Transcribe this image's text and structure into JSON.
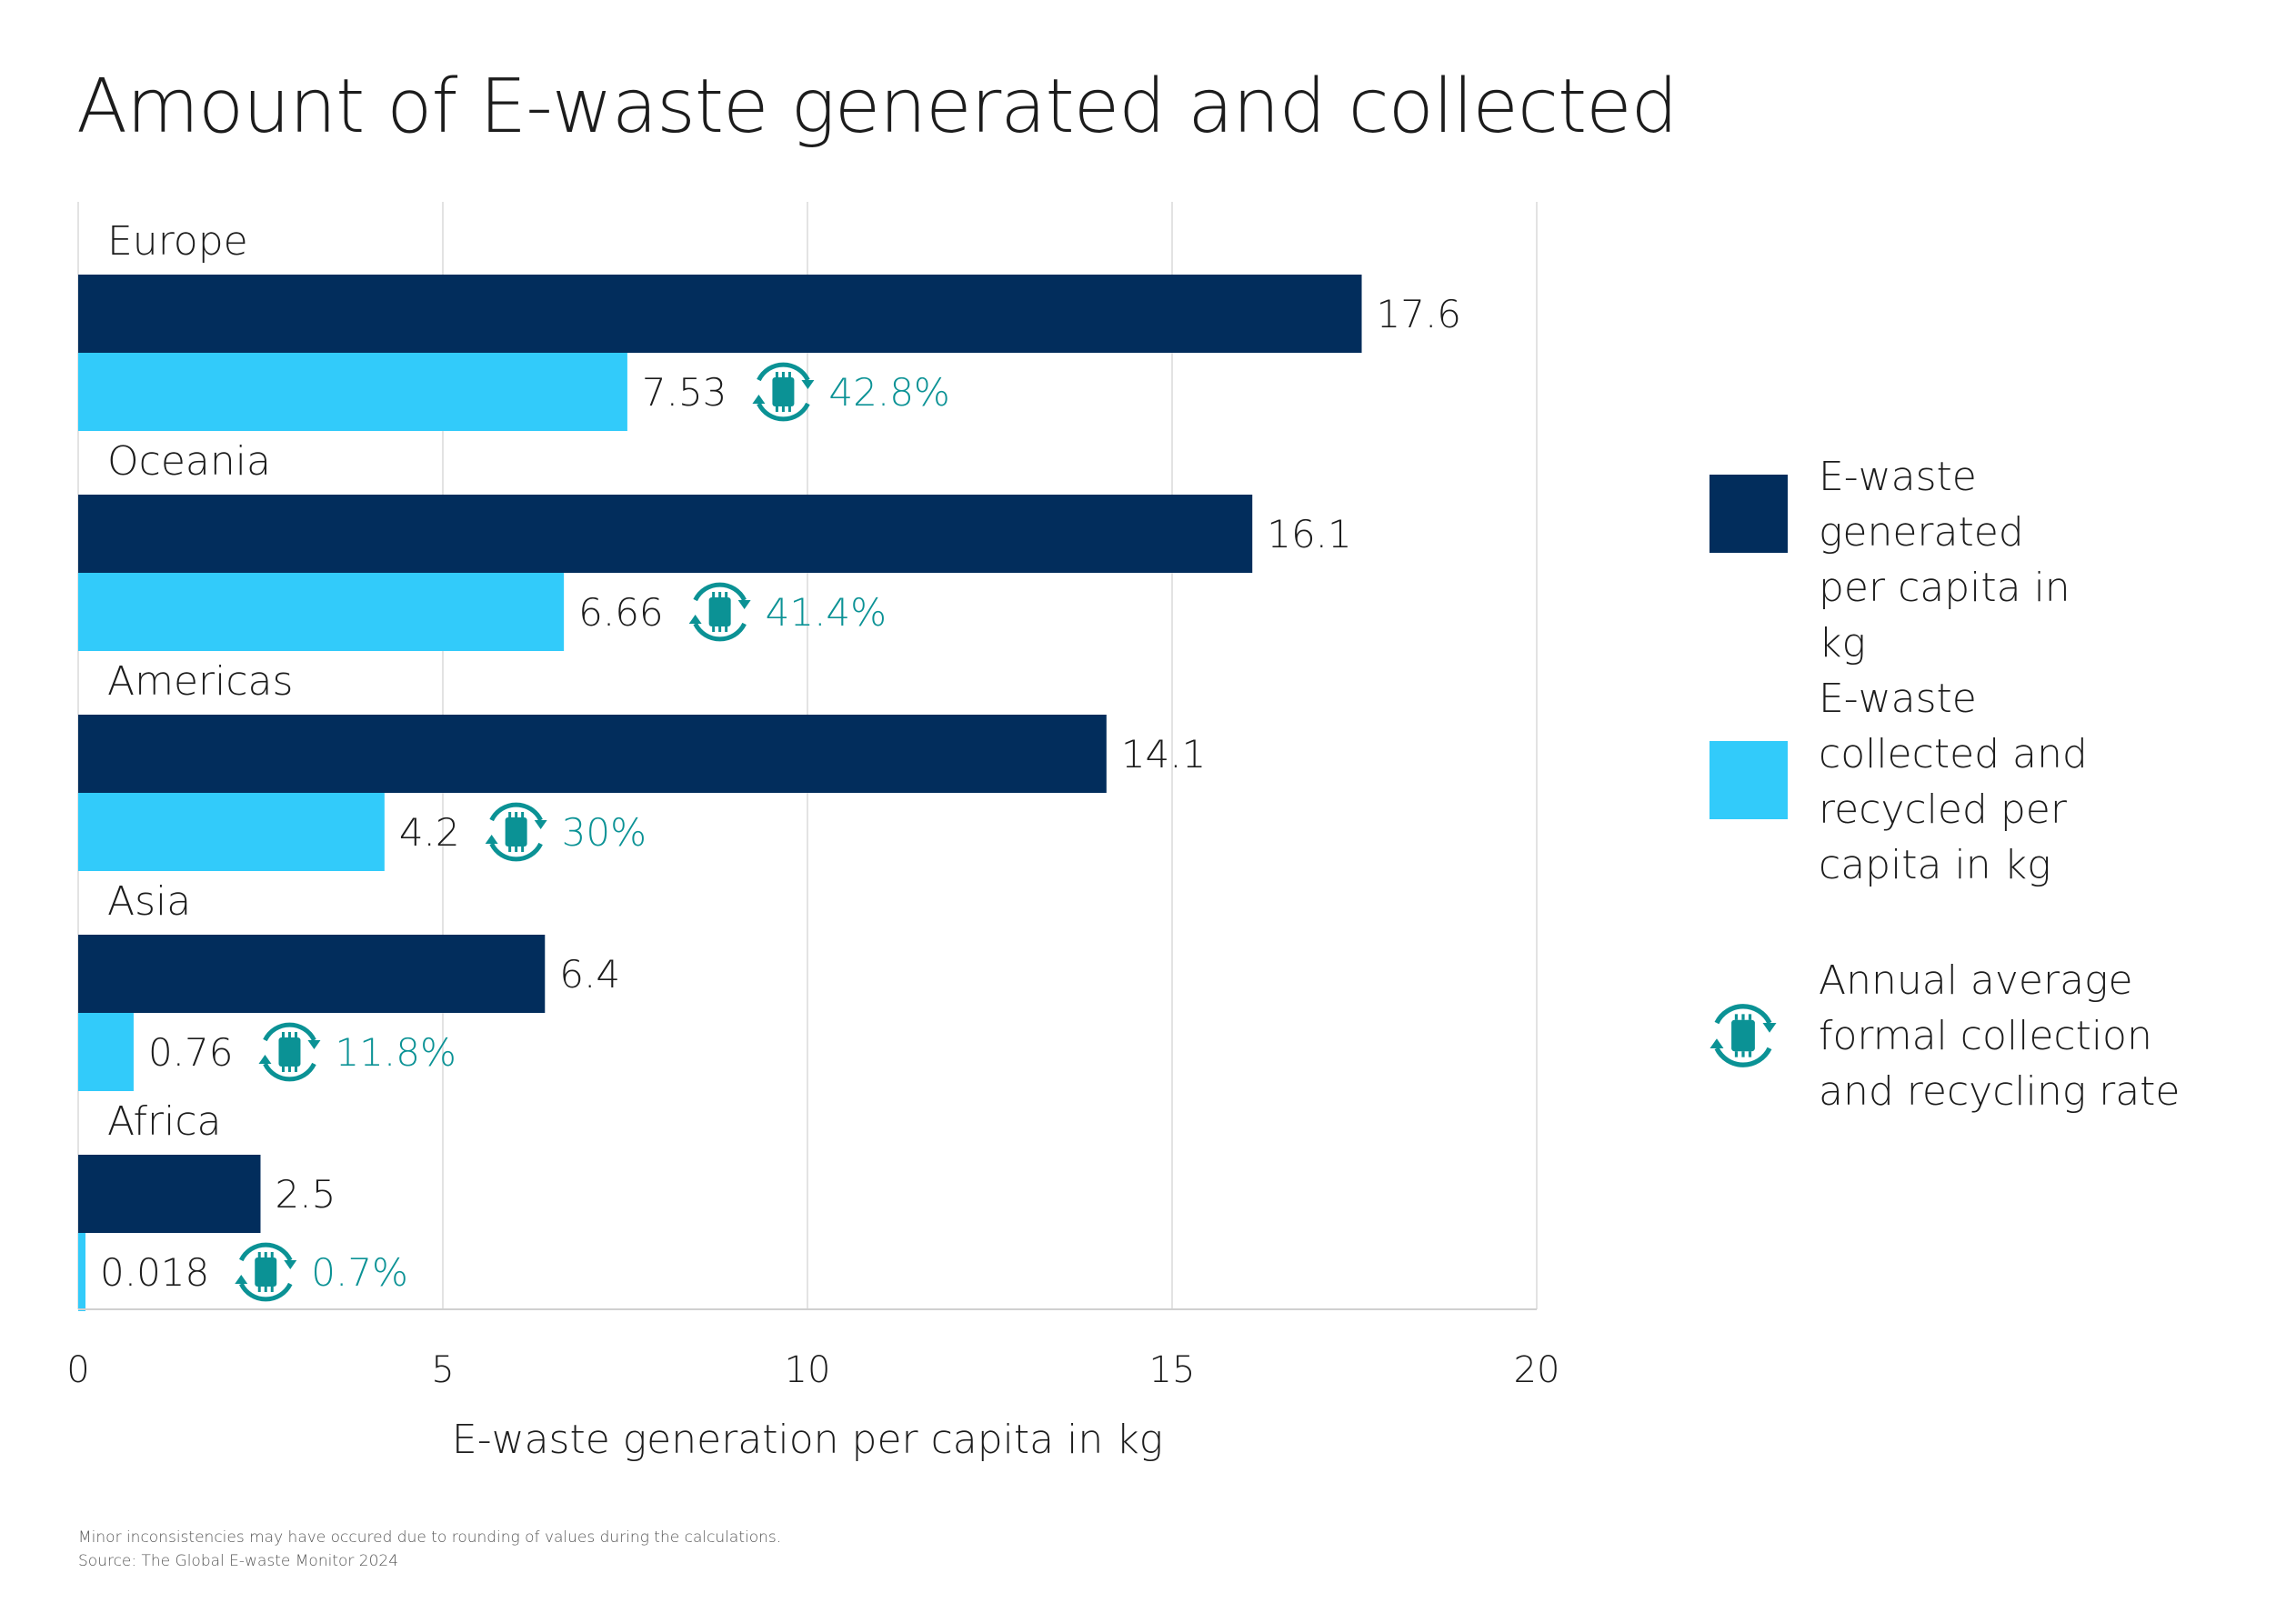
{
  "chart_data": {
    "type": "bar",
    "orientation": "horizontal",
    "title": "Amount of E-waste generated and collected",
    "xlabel": "E-waste generation per capita in kg",
    "xlim": [
      0,
      20
    ],
    "xticks": [
      0,
      5,
      10,
      15,
      20
    ],
    "grid": true,
    "legend_position": "right",
    "categories": [
      "Europe",
      "Oceania",
      "Americas",
      "Asia",
      "Africa"
    ],
    "series": [
      {
        "name": "E-waste generated per capita in kg",
        "color": "#022d5c",
        "values": [
          17.6,
          16.1,
          14.1,
          6.4,
          2.5
        ],
        "labels": [
          "17.6",
          "16.1",
          "14.1",
          "6.4",
          "2.5"
        ]
      },
      {
        "name": "E-waste collected and recycled per capita in kg",
        "color": "#32cbfa",
        "values": [
          7.53,
          6.66,
          4.2,
          0.76,
          0.018
        ],
        "labels": [
          "7.53",
          "6.66",
          "4.2",
          "0.76",
          "0.018"
        ]
      }
    ],
    "rates": {
      "name": "Annual average formal collection and recycling rate",
      "color": "#0b9295",
      "icon": "recycle-chip-icon",
      "labels": [
        "42.8%",
        "41.4%",
        "30%",
        "11.8%",
        "0.7%"
      ]
    }
  },
  "legend": {
    "items": [
      {
        "label": "E-waste generated per capita in kg",
        "color": "#022d5c"
      },
      {
        "label": "E-waste collected and recycled per capita in kg",
        "color": "#32cbfa"
      },
      {
        "label": "Annual average formal collection and recycling rate",
        "icon": "recycle-chip-icon"
      }
    ]
  },
  "footnote": {
    "line1": "Minor inconsistencies may have occured due to rounding of values during the calculations.",
    "line2": "Source: The Global E-waste Monitor 2024"
  }
}
